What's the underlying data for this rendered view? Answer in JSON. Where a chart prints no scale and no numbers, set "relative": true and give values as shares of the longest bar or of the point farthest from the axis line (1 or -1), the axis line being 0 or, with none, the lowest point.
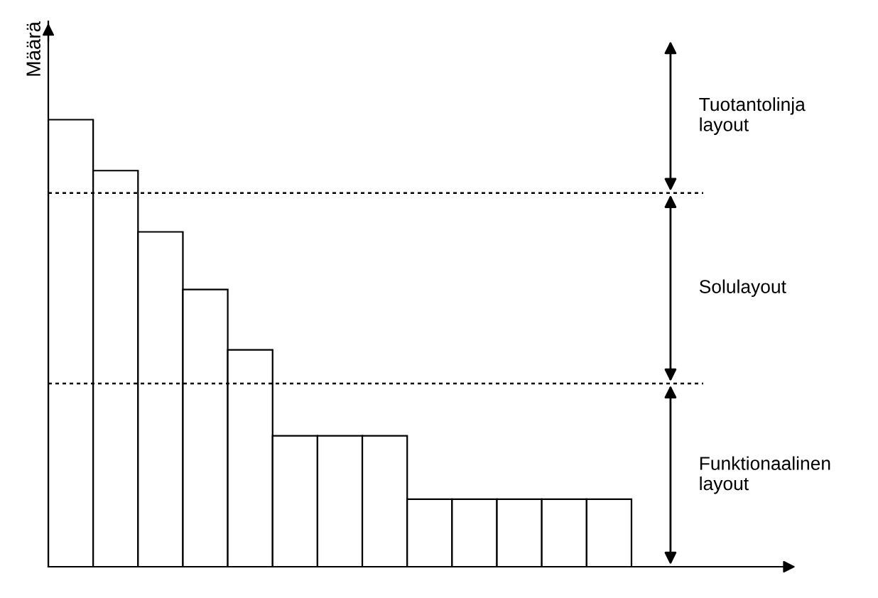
{
  "chart_data": {
    "type": "bar",
    "relative": true,
    "ylabel": "Määrä",
    "categories": [
      null,
      null,
      null,
      null,
      null,
      null,
      null,
      null,
      null,
      null,
      null,
      null,
      null
    ],
    "values": [
      1,
      0.886,
      0.749,
      0.62,
      0.485,
      0.293,
      0.293,
      0.293,
      0.151,
      0.151,
      0.151,
      0.151,
      0.151
    ],
    "color": "#ffffff",
    "ref_lines": [
      {
        "axis": "y",
        "value": 0.836,
        "line_style": "dotted",
        "color": "#000000"
      },
      {
        "axis": "y",
        "value": 0.41,
        "line_style": "dotted",
        "color": "#000000"
      }
    ],
    "annotations": [
      "Tuotantolinja\nlayout",
      "Solulayout",
      "Funktionaalinen\nlayout"
    ],
    "grid": false
  }
}
